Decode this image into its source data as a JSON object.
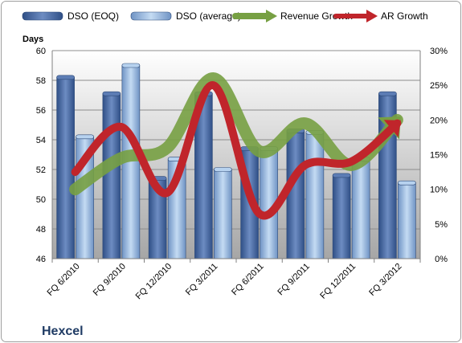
{
  "company": "Hexcel",
  "chart_data": {
    "type": "bar",
    "categories": [
      "FQ 6/2010",
      "FQ 9/2010",
      "FQ 12/2010",
      "FQ 3/2011",
      "FQ 6/2011",
      "FQ 9/2011",
      "FQ 12/2011",
      "FQ 3/2012"
    ],
    "ylabel": "Days",
    "ylim": [
      46,
      60
    ],
    "y_ticks": [
      "46",
      "48",
      "50",
      "52",
      "54",
      "56",
      "58",
      "60"
    ],
    "y2lim": [
      0,
      30
    ],
    "y2_ticks": [
      "0%",
      "5%",
      "10%",
      "15%",
      "20%",
      "25%",
      "30%"
    ],
    "grid": true,
    "legend_position": "top",
    "series": [
      {
        "name": "DSO (EOQ)",
        "type": "bar",
        "axis": "left",
        "color": "#4f6fa8",
        "values": [
          58.2,
          57.1,
          51.4,
          57.1,
          53.4,
          54.6,
          51.6,
          57.1
        ]
      },
      {
        "name": "DSO (average)",
        "type": "bar",
        "axis": "left",
        "color": "#a9c6e8",
        "values": [
          54.2,
          59.0,
          52.7,
          52.0,
          53.4,
          54.5,
          52.7,
          51.1
        ]
      },
      {
        "name": "Revenue Growth",
        "type": "line",
        "axis": "right",
        "unit": "%",
        "color": "#77a043",
        "values": [
          10,
          14.5,
          16,
          26,
          15.5,
          19.5,
          13.5,
          20
        ]
      },
      {
        "name": "AR Growth",
        "type": "line",
        "axis": "right",
        "unit": "%",
        "color": "#c0252b",
        "values": [
          12.5,
          19,
          9.5,
          25,
          6.5,
          13.5,
          14,
          19.5
        ]
      }
    ]
  }
}
